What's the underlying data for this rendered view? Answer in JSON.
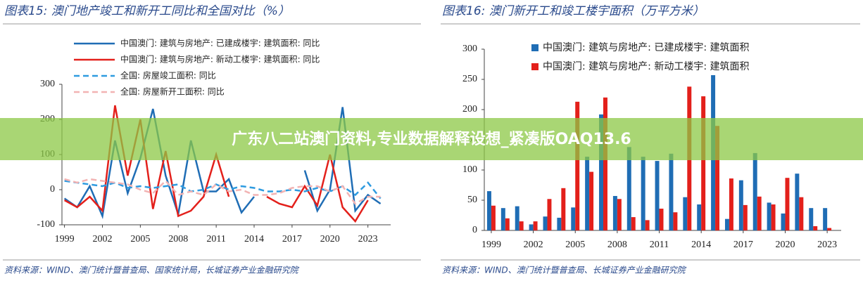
{
  "chart_data": [
    {
      "type": "line",
      "title": "图表15:  澳门地产竣工和新开工同比和全国对比（%）",
      "source": "资料来源：WIND、澳门统计暨普查局、国家统计局，长城证券产业金融研究院",
      "x": [
        1999,
        2000,
        2001,
        2002,
        2003,
        2004,
        2005,
        2006,
        2007,
        2008,
        2009,
        2010,
        2011,
        2012,
        2013,
        2014,
        2015,
        2016,
        2017,
        2018,
        2019,
        2020,
        2021,
        2022,
        2023,
        2024
      ],
      "xlim": [
        1998.8,
        2024.8
      ],
      "xticks": [
        1999,
        2002,
        2005,
        2008,
        2011,
        2014,
        2017,
        2020,
        2023
      ],
      "ylim": [
        -100,
        300
      ],
      "yticks": [
        -100,
        0,
        100,
        200,
        300
      ],
      "series": [
        {
          "name": "中国澳门: 建筑与房地产: 已建成楼宇: 建筑面积: 同比",
          "color": "#1f6db5",
          "dashed": false,
          "values": [
            -25,
            -50,
            10,
            -75,
            140,
            -10,
            90,
            230,
            40,
            -70,
            140,
            -5,
            -5,
            30,
            -65,
            -20,
            null,
            null,
            null,
            55,
            -60,
            0,
            235,
            -60,
            -15,
            -40
          ]
        },
        {
          "name": "中国澳门: 建筑与房地产: 新动工楼宇: 建筑面积: 同比",
          "color": "#e3201b",
          "dashed": false,
          "values": [
            -30,
            -50,
            -20,
            -60,
            240,
            40,
            200,
            -55,
            110,
            -75,
            -60,
            -20,
            100,
            -20,
            null,
            null,
            -20,
            -40,
            -50,
            10,
            -45,
            100,
            -50,
            -90,
            -30,
            null
          ]
        },
        {
          "name": "全国: 房屋竣工面积: 同比",
          "color": "#2e9be0",
          "dashed": true,
          "values": [
            25,
            20,
            15,
            10,
            20,
            5,
            10,
            5,
            10,
            15,
            -5,
            0,
            15,
            0,
            10,
            5,
            -5,
            -5,
            0,
            -5,
            5,
            -5,
            10,
            -15,
            20,
            -25
          ]
        },
        {
          "name": "全国: 房屋新开工面积: 同比",
          "color": "#f2b3b3",
          "dashed": true,
          "values": [
            30,
            20,
            30,
            25,
            20,
            15,
            0,
            -10,
            25,
            -15,
            -5,
            -15,
            15,
            -5,
            0,
            -15,
            -15,
            -10,
            5,
            10,
            10,
            -5,
            10,
            -40,
            -20,
            -20
          ]
        }
      ]
    },
    {
      "type": "bar",
      "title": "图表16:  澳门新开工和竣工楼宇面积（万平方米）",
      "source": "资料来源：WIND、澳门统计暨普查局、长城证券产业金融研究院",
      "x": [
        1999,
        2000,
        2001,
        2002,
        2003,
        2004,
        2005,
        2006,
        2007,
        2008,
        2009,
        2010,
        2011,
        2012,
        2013,
        2014,
        2015,
        2016,
        2017,
        2018,
        2019,
        2020,
        2021,
        2022,
        2023
      ],
      "xlim": [
        1998.5,
        2024
      ],
      "xticks": [
        1999,
        2002,
        2005,
        2008,
        2011,
        2014,
        2017,
        2020,
        2023
      ],
      "ylim": [
        0,
        300
      ],
      "yticks": [
        0,
        50,
        100,
        150,
        200,
        250,
        300
      ],
      "series": [
        {
          "name": "中国澳门: 建筑与房地产: 已建成楼宇: 建筑面积",
          "color": "#1f6db5",
          "values": [
            65,
            37,
            40,
            10,
            23,
            21,
            38,
            122,
            192,
            57,
            138,
            122,
            115,
            127,
            55,
            43,
            257,
            19,
            83,
            128,
            46,
            28,
            94,
            37,
            37
          ]
        },
        {
          "name": "中国澳门: 建筑与房地产: 新动工楼宇: 建筑面积",
          "color": "#e3201b",
          "values": [
            41,
            20,
            15,
            15,
            52,
            70,
            213,
            97,
            220,
            52,
            22,
            17,
            36,
            30,
            238,
            222,
            173,
            86,
            42,
            56,
            43,
            87,
            55,
            7,
            4
          ]
        }
      ]
    }
  ],
  "overlay_banner": "广东八二站澳门资料,专业数据解释设想_紧凑版OAQ13.6"
}
